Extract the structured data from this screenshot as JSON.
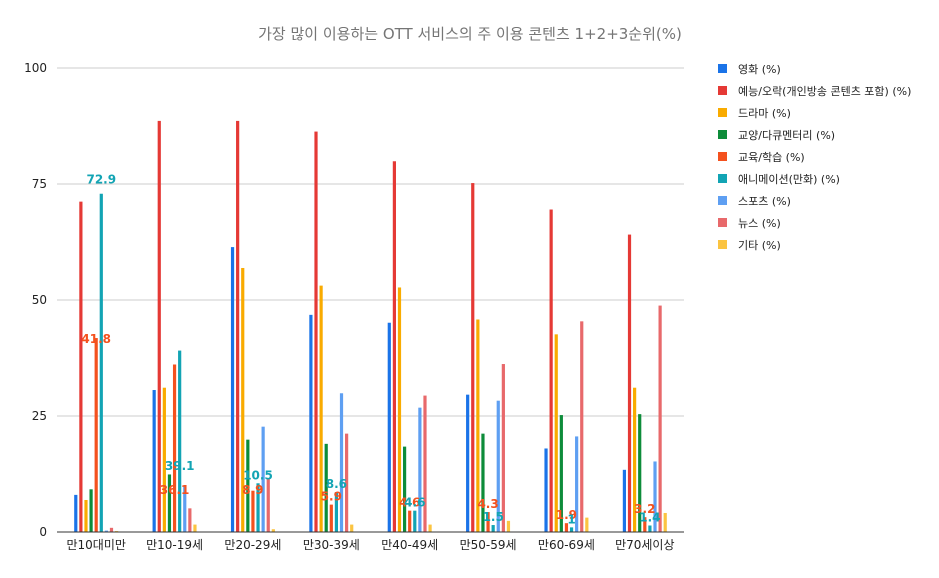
{
  "chart_data": {
    "type": "bar",
    "title": "가장 많이 이용하는 OTT 서비스의 주 이용 콘텐츠 1+2+3순위(%)",
    "xlabel": "",
    "ylabel": "",
    "ylim": [
      0,
      100
    ],
    "yticks": [
      "0",
      "25",
      "50",
      "75",
      "100"
    ],
    "grid": true,
    "legend_position": "right",
    "categories": [
      "만10대미만",
      "만10-19세",
      "만20-29세",
      "만30-39세",
      "만40-49세",
      "만50-59세",
      "만60-69세",
      "만70세이상"
    ],
    "series": [
      {
        "name": "영화 (%)",
        "color": "#1a73e8",
        "values": [
          8.0,
          30.6,
          61.4,
          46.8,
          45.1,
          29.6,
          18.0,
          13.4
        ]
      },
      {
        "name": "예능/오락(개인방송 콘텐츠 포함) (%)",
        "color": "#e53935",
        "values": [
          71.2,
          88.6,
          88.6,
          86.3,
          79.9,
          75.2,
          69.5,
          64.1
        ]
      },
      {
        "name": "드라마 (%)",
        "color": "#f9ab00",
        "values": [
          6.9,
          31.1,
          56.9,
          53.1,
          52.7,
          45.8,
          42.6,
          31.1
        ]
      },
      {
        "name": "교양/다큐멘터리 (%)",
        "color": "#0d8c3a",
        "values": [
          9.2,
          12.4,
          19.9,
          19.0,
          18.4,
          21.2,
          25.2,
          25.4
        ]
      },
      {
        "name": "교육/학습 (%)",
        "color": "#f4511e",
        "values": [
          41.8,
          36.1,
          8.9,
          5.9,
          4.6,
          4.3,
          1.9,
          3.2
        ]
      },
      {
        "name": "애니메이션(만화) (%)",
        "color": "#12a4b4",
        "values": [
          72.9,
          39.1,
          10.5,
          8.6,
          4.6,
          1.5,
          1.0,
          1.4
        ]
      },
      {
        "name": "스포츠 (%)",
        "color": "#5e9ff2",
        "values": [
          0.3,
          9.8,
          22.7,
          29.9,
          26.8,
          28.3,
          20.6,
          15.2
        ]
      },
      {
        "name": "뉴스 (%)",
        "color": "#e8696b",
        "values": [
          0.9,
          5.1,
          11.4,
          21.2,
          29.4,
          36.2,
          45.4,
          48.8
        ]
      },
      {
        "name": "기타 (%)",
        "color": "#fbc441",
        "values": [
          0.2,
          1.6,
          0.6,
          1.6,
          1.6,
          2.4,
          3.1,
          4.1
        ]
      }
    ],
    "annotations": [
      {
        "series": 4,
        "category": 0,
        "text": "41.8",
        "color": "#f4511e",
        "size": "large"
      },
      {
        "series": 5,
        "category": 0,
        "text": "72.9",
        "color": "#12a4b4",
        "size": "large"
      },
      {
        "series": 4,
        "category": 1,
        "text": "36.1",
        "color": "#f4511e",
        "size": "small"
      },
      {
        "series": 5,
        "category": 1,
        "text": "39.1",
        "color": "#12a4b4",
        "size": "small"
      },
      {
        "series": 4,
        "category": 2,
        "text": "8.9",
        "color": "#f4511e",
        "size": "small"
      },
      {
        "series": 5,
        "category": 2,
        "text": "10.5",
        "color": "#12a4b4",
        "size": "small"
      },
      {
        "series": 4,
        "category": 3,
        "text": "5.9",
        "color": "#f4511e",
        "size": "small"
      },
      {
        "series": 5,
        "category": 3,
        "text": "8.6",
        "color": "#12a4b4",
        "size": "small"
      },
      {
        "series": 4,
        "category": 4,
        "text": "4.6",
        "color": "#f4511e",
        "size": "small"
      },
      {
        "series": 5,
        "category": 4,
        "text": "4.6",
        "color": "#12a4b4",
        "size": "small"
      },
      {
        "series": 4,
        "category": 5,
        "text": "4.3",
        "color": "#f4511e",
        "size": "small"
      },
      {
        "series": 5,
        "category": 5,
        "text": "1.5",
        "color": "#12a4b4",
        "size": "small"
      },
      {
        "series": 4,
        "category": 6,
        "text": "1.9",
        "color": "#f4511e",
        "size": "small"
      },
      {
        "series": 5,
        "category": 6,
        "text": "1",
        "color": "#12a4b4",
        "size": "small"
      },
      {
        "series": 4,
        "category": 7,
        "text": "3.2",
        "color": "#f4511e",
        "size": "small"
      },
      {
        "series": 5,
        "category": 7,
        "text": "1.4",
        "color": "#12a4b4",
        "size": "small"
      }
    ]
  }
}
